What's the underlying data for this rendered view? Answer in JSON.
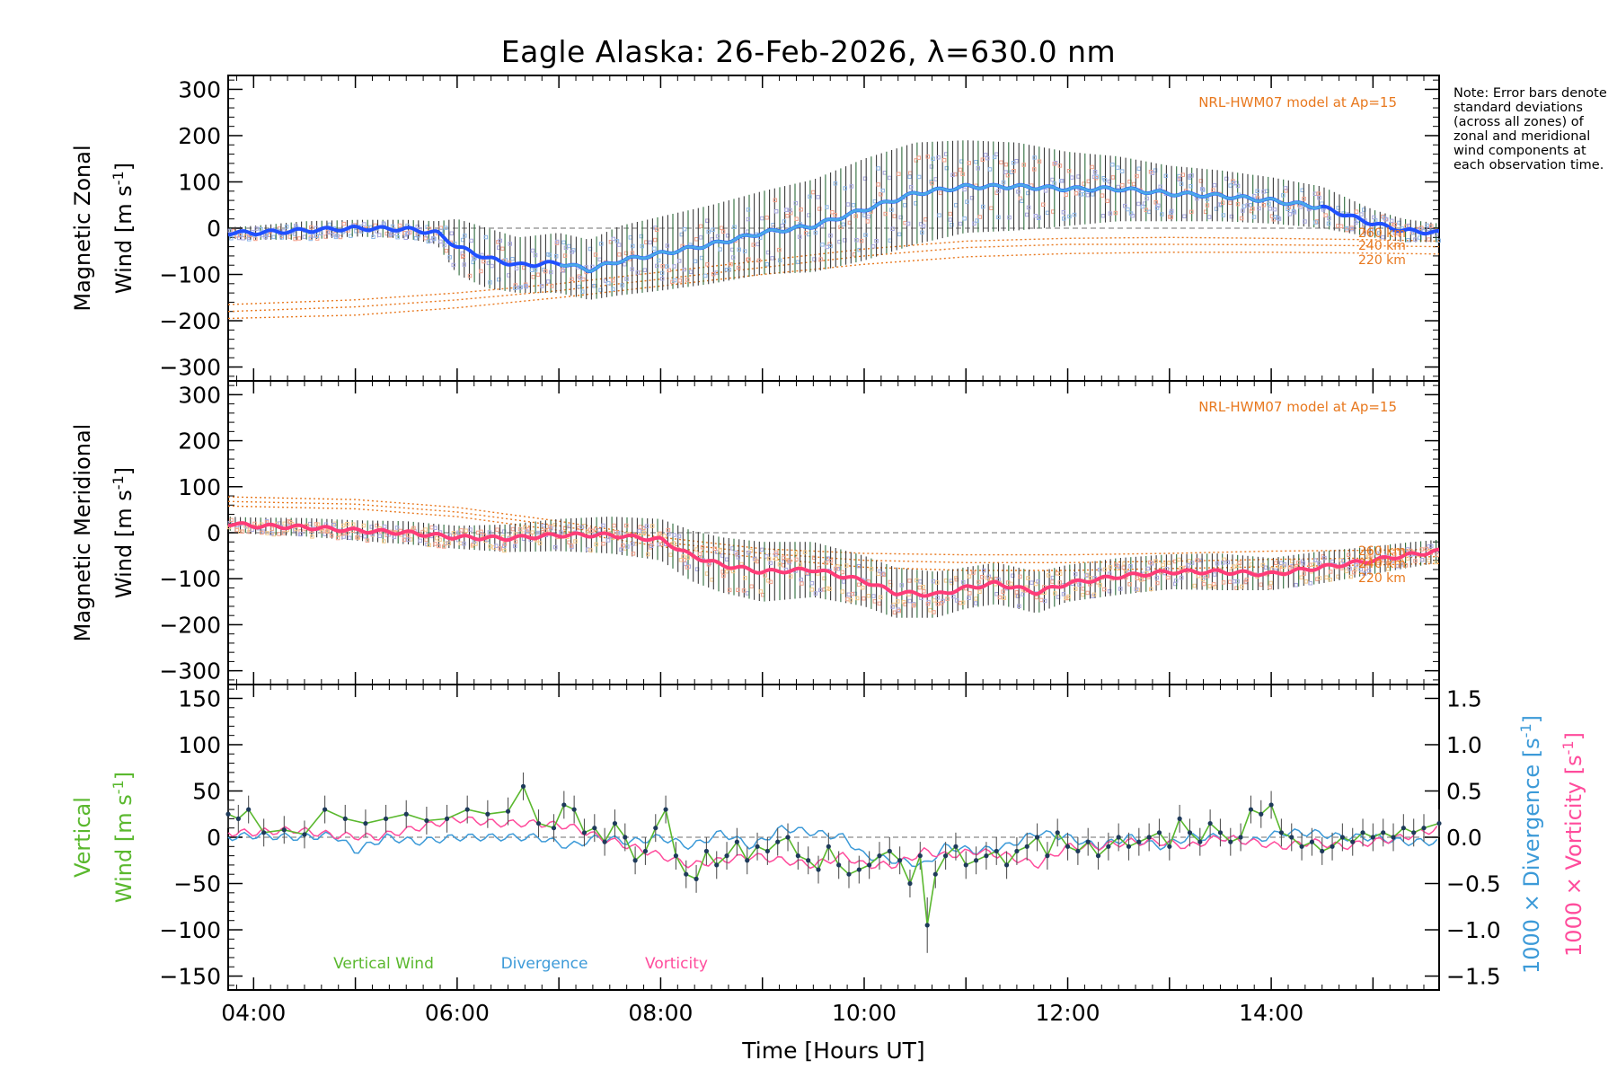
{
  "title": "Eagle Alaska: 26-Feb-2026, λ=630.0 nm",
  "note": "Note: Error bars denote standard deviations (across all zones) of zonal and meridional wind components at each observation time.",
  "colors": {
    "zonal": "#2050ff",
    "zonal_light": "#4aa8e8",
    "meridional": "#ff3c78",
    "model": "#e8781e",
    "vertical": "#5ab82e",
    "divergence": "#3c9ad8",
    "vorticity": "#ff4c9c",
    "errorbar": "#3a3a3a",
    "zero_line": "#8a8a8a"
  },
  "chart_data": [
    {
      "type": "line",
      "panel": "zonal",
      "ylabel_line1": "Magnetic Zonal",
      "ylabel_line2": "Wind [m s",
      "ylabel_sup": "-1",
      "ylabel_close": "]",
      "xlim": [
        3.75,
        15.65
      ],
      "ylim": [
        -330,
        330
      ],
      "yticks": [
        300,
        200,
        100,
        0,
        -100,
        -200,
        -300
      ],
      "ytick_labels": [
        "300",
        "200",
        "100",
        "0",
        "−100",
        "−200",
        "−300"
      ],
      "model_label": "NRL-HWM07 model at Ap=15",
      "model_altitudes": [
        "260 km",
        "240 km",
        "220 km"
      ],
      "mean_series": {
        "name": "Magnetic Zonal Wind",
        "x": [
          3.75,
          4.0,
          4.5,
          5.0,
          5.5,
          5.8,
          6.0,
          6.3,
          6.6,
          7.0,
          7.3,
          7.6,
          8.0,
          8.5,
          9.0,
          9.5,
          10.0,
          10.5,
          11.0,
          11.5,
          12.0,
          12.5,
          13.0,
          13.5,
          14.0,
          14.5,
          15.0,
          15.3,
          15.65
        ],
        "y": [
          -10,
          -10,
          -5,
          0,
          -2,
          -10,
          -40,
          -65,
          -80,
          -75,
          -90,
          -70,
          -55,
          -35,
          -10,
          5,
          40,
          75,
          90,
          90,
          85,
          85,
          75,
          70,
          60,
          45,
          10,
          -5,
          -10
        ],
        "err": [
          12,
          15,
          20,
          18,
          20,
          25,
          60,
          65,
          60,
          65,
          65,
          75,
          80,
          85,
          90,
          100,
          110,
          110,
          100,
          95,
          80,
          70,
          60,
          55,
          50,
          45,
          30,
          25,
          20
        ]
      },
      "model_series": [
        {
          "name": "260 km",
          "x": [
            3.75,
            5,
            6,
            7,
            8,
            9,
            10,
            11,
            12,
            13,
            14,
            15,
            15.65
          ],
          "y": [
            -165,
            -155,
            -140,
            -120,
            -95,
            -70,
            -45,
            -28,
            -22,
            -20,
            -22,
            -25,
            -28
          ]
        },
        {
          "name": "240 km",
          "x": [
            3.75,
            5,
            6,
            7,
            8,
            9,
            10,
            11,
            12,
            13,
            14,
            15,
            15.65
          ],
          "y": [
            -180,
            -170,
            -155,
            -135,
            -110,
            -85,
            -60,
            -42,
            -35,
            -35,
            -36,
            -38,
            -40
          ]
        },
        {
          "name": "220 km",
          "x": [
            3.75,
            5,
            6,
            7,
            8,
            9,
            10,
            11,
            12,
            13,
            14,
            15,
            15.65
          ],
          "y": [
            -195,
            -188,
            -172,
            -150,
            -125,
            -100,
            -78,
            -62,
            -55,
            -52,
            -52,
            -54,
            -56
          ]
        }
      ]
    },
    {
      "type": "line",
      "panel": "meridional",
      "ylabel_line1": "Magnetic Meridional",
      "ylabel_line2": "Wind [m s",
      "ylabel_sup": "-1",
      "ylabel_close": "]",
      "xlim": [
        3.75,
        15.65
      ],
      "ylim": [
        -330,
        330
      ],
      "yticks": [
        300,
        200,
        100,
        0,
        -100,
        -200,
        -300
      ],
      "ytick_labels": [
        "300",
        "200",
        "100",
        "0",
        "−100",
        "−200",
        "−300"
      ],
      "model_label": "NRL-HWM07 model at Ap=15",
      "model_altitudes": [
        "260 km",
        "240 km",
        "220 km"
      ],
      "mean_series": {
        "name": "Magnetic Meridional Wind",
        "x": [
          3.75,
          4.0,
          4.5,
          5.0,
          5.5,
          6.0,
          6.5,
          7.0,
          7.5,
          8.0,
          8.3,
          8.6,
          9.0,
          9.5,
          10.0,
          10.3,
          10.7,
          11.0,
          11.3,
          11.7,
          12.0,
          12.5,
          13.0,
          13.5,
          14.0,
          14.5,
          15.0,
          15.3,
          15.65
        ],
        "y": [
          20,
          15,
          12,
          5,
          0,
          -10,
          -12,
          -5,
          -5,
          -15,
          -50,
          -70,
          -85,
          -80,
          -105,
          -130,
          -135,
          -120,
          -110,
          -130,
          -110,
          -95,
          -85,
          -85,
          -90,
          -75,
          -60,
          -50,
          -40
        ],
        "err": [
          15,
          18,
          20,
          22,
          25,
          25,
          30,
          35,
          40,
          45,
          55,
          60,
          65,
          60,
          55,
          55,
          50,
          45,
          45,
          45,
          40,
          40,
          38,
          40,
          35,
          35,
          30,
          28,
          25
        ]
      },
      "model_series": [
        {
          "name": "260 km",
          "x": [
            3.75,
            5,
            6,
            7,
            8,
            9,
            10,
            11,
            12,
            13,
            14,
            15,
            15.65
          ],
          "y": [
            78,
            72,
            55,
            25,
            -10,
            -35,
            -45,
            -48,
            -48,
            -45,
            -40,
            -38,
            -36
          ]
        },
        {
          "name": "240 km",
          "x": [
            3.75,
            5,
            6,
            7,
            8,
            9,
            10,
            11,
            12,
            13,
            14,
            15,
            15.65
          ],
          "y": [
            68,
            62,
            45,
            15,
            -20,
            -45,
            -60,
            -65,
            -65,
            -62,
            -58,
            -55,
            -52
          ]
        },
        {
          "name": "220 km",
          "x": [
            3.75,
            5,
            6,
            7,
            8,
            9,
            10,
            11,
            12,
            13,
            14,
            15,
            15.65
          ],
          "y": [
            58,
            52,
            35,
            5,
            -30,
            -55,
            -75,
            -82,
            -82,
            -78,
            -74,
            -70,
            -67
          ]
        }
      ]
    },
    {
      "type": "line",
      "panel": "vertical",
      "ylabel_left_line1": "Vertical",
      "ylabel_left_line2": "Wind [m s",
      "ylabel_left_sup": "-1",
      "ylabel_left_close": "]",
      "ylabel_right1": "1000 × Divergence [s",
      "ylabel_right2": "1000 × Vorticity [s",
      "ylabel_right_sup": "-1",
      "ylabel_right_close": "]",
      "xlim": [
        3.75,
        15.65
      ],
      "ylim": [
        -165,
        165
      ],
      "yticks": [
        150,
        100,
        50,
        0,
        -50,
        -100,
        -150
      ],
      "ytick_labels": [
        "150",
        "100",
        "50",
        "0",
        "−50",
        "−100",
        "−150"
      ],
      "y2lim": [
        -1.65,
        1.65
      ],
      "y2ticks": [
        1.5,
        1.0,
        0.5,
        0.0,
        -0.5,
        -1.0,
        -1.5
      ],
      "y2tick_labels": [
        "1.5",
        "1.0",
        "0.5",
        "0.0",
        "−0.5",
        "−1.0",
        "−1.5"
      ],
      "xticks": [
        4,
        6,
        8,
        10,
        12,
        14
      ],
      "xtick_labels": [
        "04:00",
        "06:00",
        "08:00",
        "10:00",
        "12:00",
        "14:00"
      ],
      "xlabel": "Time [Hours UT]",
      "legend": [
        "Vertical Wind",
        "Divergence",
        "Vorticity"
      ],
      "series": [
        {
          "name": "Vertical Wind",
          "x": [
            3.75,
            3.85,
            3.95,
            4.1,
            4.3,
            4.5,
            4.7,
            4.9,
            5.1,
            5.3,
            5.5,
            5.7,
            5.9,
            6.1,
            6.3,
            6.5,
            6.65,
            6.8,
            6.95,
            7.05,
            7.15,
            7.25,
            7.35,
            7.45,
            7.55,
            7.65,
            7.75,
            7.85,
            7.95,
            8.05,
            8.15,
            8.25,
            8.35,
            8.45,
            8.55,
            8.65,
            8.75,
            8.85,
            8.95,
            9.05,
            9.15,
            9.25,
            9.35,
            9.45,
            9.55,
            9.65,
            9.75,
            9.85,
            9.95,
            10.05,
            10.15,
            10.25,
            10.35,
            10.45,
            10.55,
            10.62,
            10.7,
            10.8,
            10.9,
            11.0,
            11.1,
            11.2,
            11.3,
            11.4,
            11.5,
            11.6,
            11.7,
            11.8,
            11.9,
            12.0,
            12.1,
            12.2,
            12.3,
            12.4,
            12.5,
            12.6,
            12.7,
            12.8,
            12.9,
            13.0,
            13.1,
            13.2,
            13.3,
            13.4,
            13.5,
            13.6,
            13.7,
            13.8,
            13.9,
            14.0,
            14.1,
            14.2,
            14.3,
            14.4,
            14.5,
            14.6,
            14.7,
            14.8,
            14.9,
            15.0,
            15.1,
            15.2,
            15.3,
            15.4,
            15.5,
            15.65
          ],
          "y": [
            25,
            20,
            30,
            5,
            8,
            3,
            30,
            20,
            15,
            20,
            25,
            18,
            20,
            30,
            25,
            28,
            55,
            15,
            10,
            35,
            30,
            5,
            10,
            -5,
            15,
            0,
            -25,
            -15,
            10,
            30,
            -20,
            -40,
            -45,
            -15,
            -30,
            -20,
            -5,
            -25,
            -10,
            -15,
            -5,
            0,
            -20,
            -25,
            -35,
            -10,
            -30,
            -40,
            -35,
            -30,
            -20,
            -15,
            -25,
            -50,
            -20,
            -95,
            -40,
            -20,
            -10,
            -30,
            -25,
            -20,
            -15,
            -30,
            -15,
            -10,
            0,
            -20,
            5,
            -10,
            -15,
            -5,
            -20,
            -10,
            0,
            -10,
            -5,
            0,
            5,
            -10,
            20,
            5,
            -5,
            15,
            5,
            -5,
            0,
            30,
            25,
            35,
            5,
            0,
            -10,
            -5,
            -15,
            -10,
            0,
            -5,
            5,
            0,
            5,
            0,
            10,
            5,
            10,
            15
          ],
          "err": [
            15,
            15,
            15,
            15,
            15,
            15,
            15,
            15,
            15,
            15,
            15,
            15,
            15,
            15,
            15,
            15,
            15,
            15,
            15,
            15,
            15,
            15,
            15,
            15,
            15,
            15,
            15,
            15,
            15,
            15,
            15,
            15,
            15,
            15,
            15,
            15,
            15,
            15,
            15,
            15,
            15,
            15,
            15,
            15,
            15,
            15,
            15,
            15,
            15,
            15,
            15,
            15,
            15,
            15,
            15,
            30,
            15,
            15,
            15,
            15,
            15,
            15,
            15,
            15,
            15,
            15,
            15,
            15,
            15,
            15,
            15,
            15,
            15,
            15,
            15,
            15,
            15,
            15,
            15,
            15,
            15,
            15,
            15,
            15,
            15,
            15,
            15,
            15,
            15,
            15,
            15,
            15,
            15,
            15,
            15,
            15,
            15,
            15,
            15,
            15,
            15,
            15,
            15,
            15,
            15,
            15
          ]
        },
        {
          "name": "Divergence",
          "x": [
            3.75,
            4.0,
            4.4,
            4.8,
            5.0,
            5.3,
            5.6,
            6.0,
            6.4,
            6.8,
            7.1,
            7.4,
            7.7,
            8.0,
            8.3,
            8.6,
            8.9,
            9.2,
            9.5,
            9.8,
            10.0,
            10.3,
            10.6,
            10.8,
            11.1,
            11.4,
            11.7,
            12.0,
            12.3,
            12.6,
            12.9,
            13.2,
            13.5,
            13.8,
            14.1,
            14.4,
            14.7,
            15.0,
            15.3,
            15.65
          ],
          "y": [
            0.0,
            0.02,
            0.0,
            0.02,
            -0.15,
            0.0,
            -0.05,
            0.0,
            0.0,
            0.0,
            -0.1,
            0.0,
            -0.05,
            0.0,
            -0.1,
            0.05,
            -0.1,
            0.1,
            0.05,
            0.0,
            -0.2,
            -0.25,
            -0.3,
            -0.1,
            -0.15,
            -0.1,
            0.05,
            0.0,
            -0.1,
            0.0,
            -0.1,
            0.0,
            0.0,
            -0.05,
            0.05,
            0.05,
            0.0,
            0.0,
            -0.05,
            -0.05
          ]
        },
        {
          "name": "Vorticity",
          "x": [
            3.75,
            4.0,
            4.4,
            4.8,
            5.2,
            5.6,
            6.0,
            6.4,
            6.8,
            7.1,
            7.4,
            7.7,
            8.0,
            8.3,
            8.6,
            8.9,
            9.2,
            9.5,
            9.8,
            10.0,
            10.3,
            10.6,
            10.8,
            11.1,
            11.4,
            11.7,
            12.0,
            12.3,
            12.6,
            12.9,
            13.2,
            13.5,
            13.8,
            14.1,
            14.4,
            14.7,
            15.0,
            15.3,
            15.65
          ],
          "y": [
            0.05,
            0.05,
            0.08,
            0.02,
            0.0,
            0.1,
            0.2,
            0.15,
            0.15,
            0.12,
            0.0,
            -0.1,
            -0.2,
            -0.3,
            -0.25,
            -0.2,
            -0.25,
            -0.3,
            -0.2,
            -0.3,
            -0.3,
            -0.15,
            -0.2,
            -0.15,
            -0.2,
            -0.3,
            -0.1,
            -0.1,
            -0.05,
            -0.05,
            -0.1,
            0.0,
            -0.05,
            -0.1,
            -0.05,
            -0.1,
            -0.05,
            0.0,
            0.1
          ]
        }
      ]
    }
  ]
}
